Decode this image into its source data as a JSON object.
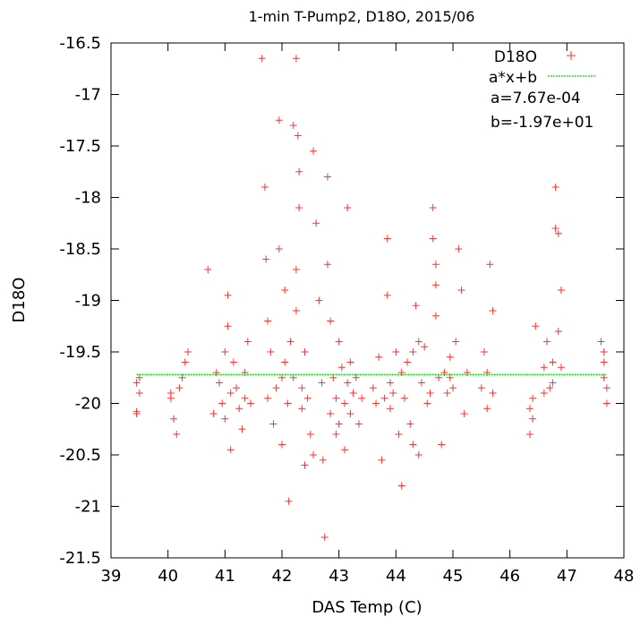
{
  "chart_data": {
    "type": "scatter",
    "title": "1-min T-Pump2, D18O, 2015/06",
    "xlabel": "DAS Temp (C)",
    "ylabel": "D18O",
    "xlim": [
      39,
      48
    ],
    "ylim": [
      -21.5,
      -16.5
    ],
    "xticks": [
      "39",
      "40",
      "41",
      "42",
      "43",
      "44",
      "45",
      "46",
      "47",
      "48"
    ],
    "yticks": [
      "-16.5",
      "-17",
      "-17.5",
      "-18",
      "-18.5",
      "-19",
      "-19.5",
      "-20",
      "-20.5",
      "-21",
      "-21.5"
    ],
    "legend_position": "top-right",
    "colors": {
      "scatter": "#ff3030",
      "fit": "#00dd00",
      "axes": "#000000"
    },
    "series": [
      {
        "name": "D18O",
        "marker": "+",
        "points": [
          [
            39.45,
            -19.8
          ],
          [
            39.45,
            -20.1
          ],
          [
            39.5,
            -19.75
          ],
          [
            39.5,
            -19.9
          ],
          [
            39.45,
            -20.08
          ],
          [
            40.05,
            -19.9
          ],
          [
            40.1,
            -20.15
          ],
          [
            40.15,
            -20.3
          ],
          [
            40.2,
            -19.85
          ],
          [
            40.3,
            -19.6
          ],
          [
            40.35,
            -19.5
          ],
          [
            40.05,
            -19.95
          ],
          [
            40.25,
            -19.75
          ],
          [
            40.7,
            -18.7
          ],
          [
            40.8,
            -20.1
          ],
          [
            40.85,
            -19.7
          ],
          [
            40.9,
            -19.8
          ],
          [
            40.95,
            -20.0
          ],
          [
            41.0,
            -19.5
          ],
          [
            41.0,
            -20.15
          ],
          [
            41.05,
            -19.25
          ],
          [
            41.05,
            -18.95
          ],
          [
            41.1,
            -19.9
          ],
          [
            41.1,
            -20.45
          ],
          [
            41.15,
            -19.6
          ],
          [
            41.2,
            -19.85
          ],
          [
            41.25,
            -20.05
          ],
          [
            41.3,
            -20.25
          ],
          [
            41.35,
            -19.7
          ],
          [
            41.4,
            -19.4
          ],
          [
            41.45,
            -20.0
          ],
          [
            41.35,
            -19.95
          ],
          [
            41.65,
            -16.65
          ],
          [
            41.7,
            -17.9
          ],
          [
            41.72,
            -18.6
          ],
          [
            41.75,
            -19.2
          ],
          [
            41.75,
            -19.95
          ],
          [
            41.8,
            -19.5
          ],
          [
            41.85,
            -20.2
          ],
          [
            41.9,
            -19.85
          ],
          [
            41.95,
            -18.5
          ],
          [
            41.95,
            -17.25
          ],
          [
            42.0,
            -19.75
          ],
          [
            42.0,
            -20.4
          ],
          [
            42.05,
            -19.6
          ],
          [
            42.05,
            -18.9
          ],
          [
            42.1,
            -20.0
          ],
          [
            42.12,
            -20.95
          ],
          [
            42.15,
            -19.4
          ],
          [
            42.2,
            -17.3
          ],
          [
            42.2,
            -19.75
          ],
          [
            42.25,
            -18.7
          ],
          [
            42.25,
            -19.1
          ],
          [
            42.28,
            -17.4
          ],
          [
            42.25,
            -16.65
          ],
          [
            42.3,
            -17.75
          ],
          [
            42.3,
            -18.1
          ],
          [
            42.35,
            -19.85
          ],
          [
            42.35,
            -20.05
          ],
          [
            42.4,
            -19.5
          ],
          [
            42.4,
            -20.6
          ],
          [
            42.45,
            -19.95
          ],
          [
            42.5,
            -20.3
          ],
          [
            42.55,
            -17.55
          ],
          [
            42.55,
            -20.5
          ],
          [
            42.6,
            -18.25
          ],
          [
            42.65,
            -19.0
          ],
          [
            42.7,
            -19.8
          ],
          [
            42.72,
            -20.55
          ],
          [
            42.75,
            -21.3
          ],
          [
            42.8,
            -17.8
          ],
          [
            42.8,
            -18.65
          ],
          [
            42.85,
            -19.2
          ],
          [
            42.85,
            -20.1
          ],
          [
            42.9,
            -19.75
          ],
          [
            42.95,
            -19.95
          ],
          [
            43.0,
            -19.4
          ],
          [
            43.0,
            -20.2
          ],
          [
            43.05,
            -19.65
          ],
          [
            43.1,
            -20.0
          ],
          [
            43.15,
            -18.1
          ],
          [
            43.15,
            -19.8
          ],
          [
            43.2,
            -19.6
          ],
          [
            43.2,
            -20.1
          ],
          [
            43.25,
            -19.9
          ],
          [
            43.3,
            -19.75
          ],
          [
            43.35,
            -20.2
          ],
          [
            43.4,
            -19.95
          ],
          [
            43.1,
            -20.45
          ],
          [
            42.95,
            -20.3
          ],
          [
            43.6,
            -19.85
          ],
          [
            43.65,
            -20.0
          ],
          [
            43.7,
            -19.55
          ],
          [
            43.75,
            -20.55
          ],
          [
            43.8,
            -19.95
          ],
          [
            43.85,
            -18.4
          ],
          [
            43.85,
            -18.95
          ],
          [
            43.9,
            -19.8
          ],
          [
            43.95,
            -19.9
          ],
          [
            44.0,
            -19.5
          ],
          [
            44.05,
            -20.3
          ],
          [
            44.1,
            -19.7
          ],
          [
            44.1,
            -20.8
          ],
          [
            44.15,
            -19.95
          ],
          [
            44.2,
            -19.6
          ],
          [
            44.25,
            -20.2
          ],
          [
            44.3,
            -19.5
          ],
          [
            44.3,
            -20.4
          ],
          [
            44.35,
            -19.05
          ],
          [
            44.4,
            -19.4
          ],
          [
            44.45,
            -19.8
          ],
          [
            44.5,
            -19.45
          ],
          [
            44.55,
            -20.0
          ],
          [
            44.6,
            -19.9
          ],
          [
            44.65,
            -18.1
          ],
          [
            44.65,
            -18.4
          ],
          [
            44.7,
            -18.65
          ],
          [
            44.7,
            -18.85
          ],
          [
            44.7,
            -19.15
          ],
          [
            44.75,
            -19.75
          ],
          [
            44.8,
            -20.4
          ],
          [
            44.85,
            -19.7
          ],
          [
            44.9,
            -19.9
          ],
          [
            44.95,
            -19.55
          ],
          [
            45.0,
            -19.85
          ],
          [
            45.05,
            -19.4
          ],
          [
            45.1,
            -18.5
          ],
          [
            45.15,
            -18.9
          ],
          [
            45.2,
            -20.1
          ],
          [
            45.25,
            -19.7
          ],
          [
            44.4,
            -20.5
          ],
          [
            43.9,
            -20.05
          ],
          [
            44.95,
            -19.75
          ],
          [
            45.5,
            -19.85
          ],
          [
            45.55,
            -19.5
          ],
          [
            45.6,
            -19.7
          ],
          [
            45.6,
            -20.05
          ],
          [
            45.65,
            -18.65
          ],
          [
            45.7,
            -19.1
          ],
          [
            45.7,
            -19.9
          ],
          [
            46.35,
            -20.05
          ],
          [
            46.35,
            -20.3
          ],
          [
            46.4,
            -19.95
          ],
          [
            46.4,
            -20.15
          ],
          [
            46.45,
            -19.25
          ],
          [
            46.6,
            -19.9
          ],
          [
            46.6,
            -19.65
          ],
          [
            46.65,
            -19.4
          ],
          [
            46.7,
            -19.85
          ],
          [
            46.75,
            -19.6
          ],
          [
            46.8,
            -18.3
          ],
          [
            46.8,
            -17.9
          ],
          [
            46.85,
            -18.35
          ],
          [
            46.85,
            -19.3
          ],
          [
            46.9,
            -18.9
          ],
          [
            46.9,
            -19.65
          ],
          [
            46.75,
            -19.8
          ],
          [
            47.6,
            -19.4
          ],
          [
            47.65,
            -19.6
          ],
          [
            47.65,
            -19.75
          ],
          [
            47.7,
            -19.85
          ],
          [
            47.7,
            -20.0
          ],
          [
            47.65,
            -19.5
          ]
        ]
      },
      {
        "name": "a*x+b",
        "type": "line",
        "x": [
          39.45,
          47.7
        ],
        "y": [
          -19.72,
          -19.72
        ]
      }
    ],
    "annotations": [
      "a=7.67e-04",
      "b=-1.97e+01"
    ]
  }
}
